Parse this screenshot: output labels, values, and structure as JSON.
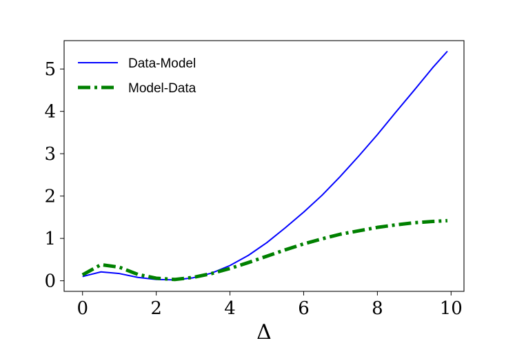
{
  "chart_data": {
    "type": "line",
    "title": "",
    "xlabel": "Δ",
    "ylabel": "",
    "xlim": [
      -0.5,
      10.35
    ],
    "ylim": [
      -0.25,
      5.67
    ],
    "xticks": [
      "0",
      "2",
      "4",
      "6",
      "8",
      "10"
    ],
    "yticks": [
      "0",
      "1",
      "2",
      "3",
      "4",
      "5"
    ],
    "grid": false,
    "legend_position": "top-left",
    "series": [
      {
        "name": "Data-Model",
        "color": "#0000ff",
        "style": "solid",
        "x": [
          0,
          0.5,
          1,
          1.5,
          2,
          2.5,
          3,
          3.5,
          4,
          4.5,
          5,
          5.5,
          6,
          6.5,
          7,
          7.5,
          8,
          8.5,
          9,
          9.5,
          9.9
        ],
        "y": [
          0.1,
          0.21,
          0.17,
          0.08,
          0.03,
          0.02,
          0.07,
          0.18,
          0.36,
          0.6,
          0.9,
          1.25,
          1.62,
          2.02,
          2.47,
          2.95,
          3.45,
          3.98,
          4.5,
          5.03,
          5.42
        ]
      },
      {
        "name": "Model-Data",
        "color": "#008000",
        "style": "dashdot",
        "x": [
          0,
          0.5,
          1,
          1.5,
          2,
          2.5,
          3,
          3.5,
          4,
          4.5,
          5,
          5.5,
          6,
          6.5,
          7,
          7.5,
          8,
          8.5,
          9,
          9.5,
          9.9
        ],
        "y": [
          0.14,
          0.38,
          0.32,
          0.15,
          0.06,
          0.03,
          0.08,
          0.17,
          0.29,
          0.43,
          0.58,
          0.73,
          0.87,
          0.99,
          1.1,
          1.18,
          1.26,
          1.32,
          1.37,
          1.4,
          1.42
        ]
      }
    ]
  }
}
